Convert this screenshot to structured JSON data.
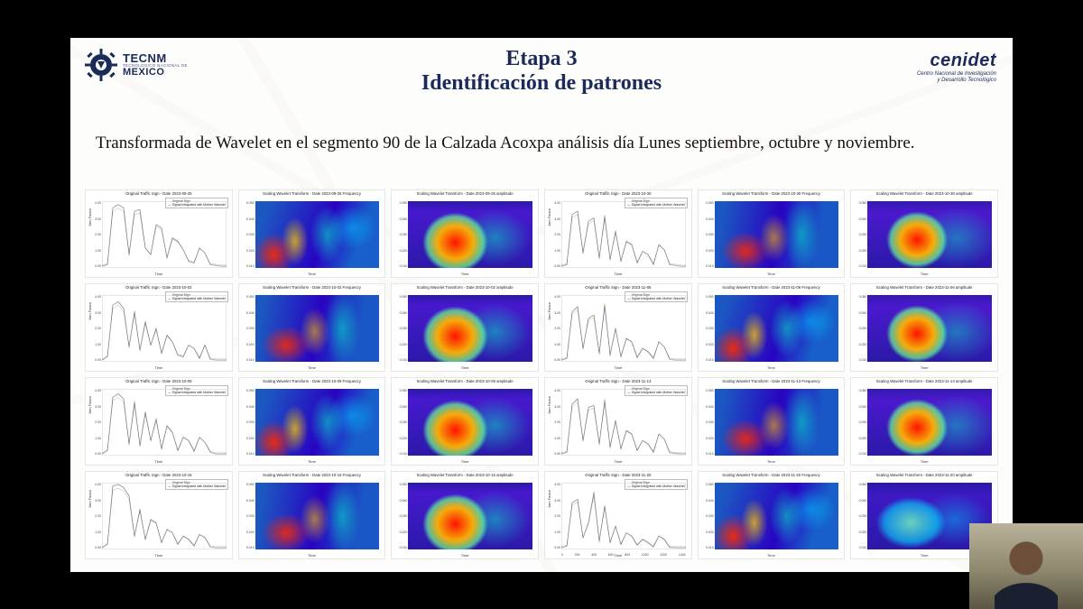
{
  "logos": {
    "left": {
      "line1": "TECNM",
      "line2": "TECNOLOGICO NACIONAL DE",
      "line3": "MEXICO",
      "color": "#1b2a5b"
    },
    "right": {
      "line1": "cenidet",
      "line2": "Centro Nacional de Investigación",
      "line3": "y Desarrollo Tecnológico",
      "color": "#1b2a5b"
    }
  },
  "title": {
    "line1": "Etapa 3",
    "line2": "Identificación de patrones",
    "color": "#1b2a5b",
    "fontsize": 24
  },
  "subtitle": "Transformada de Wavelet en el segmento 90 de la Calzada Acoxpa análisis día Lunes septiembre, octubre y noviembre.",
  "grid": {
    "rows": 4,
    "cols": 6
  },
  "legend_line": {
    "l1": "— Original Sign",
    "l2": "— Signal Integrated with Mother Wavelet"
  },
  "ylabel_line": "Jam Factor",
  "xlabel": "Time",
  "panels": [
    {
      "r": 0,
      "c": 0,
      "kind": "line",
      "title": "Original Traffic Sign - Date 2023-09-25",
      "yticks": [
        "4.00",
        "3.00",
        "2.00",
        "1.00",
        "0.00"
      ],
      "series": [
        0.1,
        0.2,
        3.6,
        3.8,
        3.6,
        0.8,
        3.4,
        3.5,
        1.2,
        0.8,
        2.6,
        2.4,
        0.6,
        1.8,
        1.6,
        1.1,
        0.4,
        0.3,
        1.2,
        0.9,
        0.2,
        0.15,
        0.1,
        0.1
      ]
    },
    {
      "r": 0,
      "c": 1,
      "kind": "heat",
      "cls": "heat-freq",
      "title": "Scaling Wavelet Transform - Date 2023-09-25 Frequency"
    },
    {
      "r": 0,
      "c": 2,
      "kind": "heat",
      "cls": "heat-amp",
      "title": "Scaling Wavelet Transform - Date 2023-09-25 amplitude"
    },
    {
      "r": 0,
      "c": 3,
      "kind": "line",
      "title": "Original Traffic Sign - Date 2023-10-30",
      "yticks": [
        "4.00",
        "3.00",
        "2.00",
        "1.00",
        "0.00"
      ],
      "series": [
        0.1,
        0.2,
        3.2,
        3.4,
        0.9,
        2.8,
        3.0,
        0.6,
        3.1,
        0.5,
        2.2,
        0.4,
        1.6,
        1.4,
        0.3,
        1.0,
        0.8,
        0.2,
        1.4,
        1.1,
        0.2,
        0.15,
        0.1,
        0.1
      ]
    },
    {
      "r": 0,
      "c": 4,
      "kind": "heat",
      "cls": "heat-freq2",
      "title": "Scaling Wavelet Transform - Date 2023-10-30 Frequency"
    },
    {
      "r": 0,
      "c": 5,
      "kind": "heat",
      "cls": "heat-amp2",
      "title": "Scaling Wavelet Transform - Date 2023-10-30 amplitude"
    },
    {
      "r": 1,
      "c": 0,
      "kind": "line",
      "title": "Original Traffic Sign - Date 2023-10-02",
      "yticks": [
        "4.00",
        "3.00",
        "2.00",
        "1.00",
        "0.00"
      ],
      "series": [
        0.1,
        0.3,
        3.4,
        3.6,
        3.2,
        0.9,
        3.0,
        0.7,
        2.4,
        1.0,
        2.0,
        0.5,
        1.6,
        1.2,
        0.4,
        0.3,
        1.0,
        0.8,
        0.2,
        1.0,
        0.15,
        0.1,
        0.1,
        0.1
      ]
    },
    {
      "r": 1,
      "c": 1,
      "kind": "heat",
      "cls": "heat-freq2",
      "title": "Scaling Wavelet Transform - Date 2023-10-02 Frequency"
    },
    {
      "r": 1,
      "c": 2,
      "kind": "heat",
      "cls": "heat-amp",
      "title": "Scaling Wavelet Transform - Date 2023-10-02 amplitude"
    },
    {
      "r": 1,
      "c": 3,
      "kind": "line",
      "title": "Original Traffic Sign - Date 2023-11-06",
      "yticks": [
        "4.00",
        "3.00",
        "2.00",
        "1.00",
        "0.00"
      ],
      "series": [
        0.1,
        0.2,
        3.0,
        3.3,
        0.8,
        2.6,
        2.8,
        0.5,
        3.4,
        0.4,
        2.0,
        0.3,
        1.4,
        1.2,
        0.25,
        0.8,
        0.6,
        0.2,
        1.2,
        0.9,
        0.15,
        0.1,
        0.1,
        0.1
      ]
    },
    {
      "r": 1,
      "c": 4,
      "kind": "heat",
      "cls": "heat-freq",
      "title": "Scaling Wavelet Transform - Date 2023-11-06 Frequency"
    },
    {
      "r": 1,
      "c": 5,
      "kind": "heat",
      "cls": "heat-amp2",
      "title": "Scaling Wavelet Transform - Date 2023-11-06 amplitude"
    },
    {
      "r": 2,
      "c": 0,
      "kind": "line",
      "title": "Original Traffic Sign - Date 2023-10-09",
      "yticks": [
        "4.00",
        "3.00",
        "2.00",
        "1.00",
        "0.00"
      ],
      "series": [
        0.1,
        0.3,
        3.5,
        3.7,
        3.4,
        0.7,
        3.2,
        0.6,
        2.6,
        0.9,
        2.2,
        0.4,
        1.8,
        1.4,
        0.3,
        1.1,
        0.9,
        0.25,
        1.1,
        0.8,
        0.2,
        0.1,
        0.1,
        0.1
      ]
    },
    {
      "r": 2,
      "c": 1,
      "kind": "heat",
      "cls": "heat-freq",
      "title": "Scaling Wavelet Transform - Date 2023-10-09 Frequency"
    },
    {
      "r": 2,
      "c": 2,
      "kind": "heat",
      "cls": "heat-amp",
      "title": "Scaling Wavelet Transform - Date 2023-10-09 amplitude"
    },
    {
      "r": 2,
      "c": 3,
      "kind": "line",
      "title": "Original Traffic Sign - Date 2023-11-13",
      "yticks": [
        "4.00",
        "3.00",
        "2.00",
        "1.00",
        "0.00"
      ],
      "series": [
        0.1,
        0.2,
        3.1,
        3.4,
        0.9,
        2.9,
        3.0,
        0.7,
        3.3,
        0.5,
        2.1,
        0.4,
        1.5,
        1.3,
        0.3,
        0.9,
        0.7,
        0.2,
        1.3,
        1.0,
        0.18,
        0.12,
        0.1,
        0.1
      ]
    },
    {
      "r": 2,
      "c": 4,
      "kind": "heat",
      "cls": "heat-freq2",
      "title": "Scaling Wavelet Transform - Date 2023-11-13 Frequency"
    },
    {
      "r": 2,
      "c": 5,
      "kind": "heat",
      "cls": "heat-amp2",
      "title": "Scaling Wavelet Transform - Date 2023-11-13 amplitude"
    },
    {
      "r": 3,
      "c": 0,
      "kind": "line",
      "title": "Original Traffic Sign - Date 2023-10-16",
      "yticks": [
        "4.00",
        "3.00",
        "2.00",
        "1.00",
        "0.00"
      ],
      "series": [
        0.1,
        0.3,
        3.8,
        3.9,
        3.7,
        3.2,
        0.8,
        2.4,
        0.6,
        1.8,
        1.6,
        0.4,
        1.2,
        1.0,
        0.3,
        0.8,
        0.6,
        0.2,
        0.9,
        0.7,
        0.15,
        0.1,
        0.1,
        0.1
      ]
    },
    {
      "r": 3,
      "c": 1,
      "kind": "heat",
      "cls": "heat-freq2",
      "title": "Scaling Wavelet Transform - Date 2023-10-16 Frequency"
    },
    {
      "r": 3,
      "c": 2,
      "kind": "heat",
      "cls": "heat-amp",
      "title": "Scaling Wavelet Transform - Date 2023-10-16 amplitude"
    },
    {
      "r": 3,
      "c": 3,
      "kind": "line",
      "title": "Original Traffic Sign - Date 2023-11-20",
      "yticks": [
        "4.00",
        "3.00",
        "2.00",
        "1.00",
        "0.00"
      ],
      "xticks": [
        "0",
        "200",
        "400",
        "600",
        "800",
        "1000",
        "1200",
        "1400"
      ],
      "series": [
        0.1,
        0.2,
        2.8,
        3.0,
        0.7,
        1.6,
        3.4,
        0.5,
        2.6,
        0.4,
        1.4,
        0.3,
        1.0,
        0.8,
        0.25,
        0.6,
        0.4,
        0.15,
        0.8,
        0.6,
        0.12,
        0.1,
        0.1,
        0.1
      ]
    },
    {
      "r": 3,
      "c": 4,
      "kind": "heat",
      "cls": "heat-freq",
      "title": "Scaling Wavelet Transform - Date 2023-11-20 Frequency"
    },
    {
      "r": 3,
      "c": 5,
      "kind": "heat",
      "cls": "heat-amp-lite",
      "title": "Scaling Wavelet Transform - Date 2023-11-20 amplitude"
    }
  ],
  "line_style": {
    "color": "#6b5a3a",
    "width": 0.8,
    "ymax": 4.0
  },
  "heat_palette": [
    "#140090",
    "#2800c0",
    "#00b0ff",
    "#00ffc0",
    "#ffff40",
    "#ff8000",
    "#ff1000"
  ]
}
